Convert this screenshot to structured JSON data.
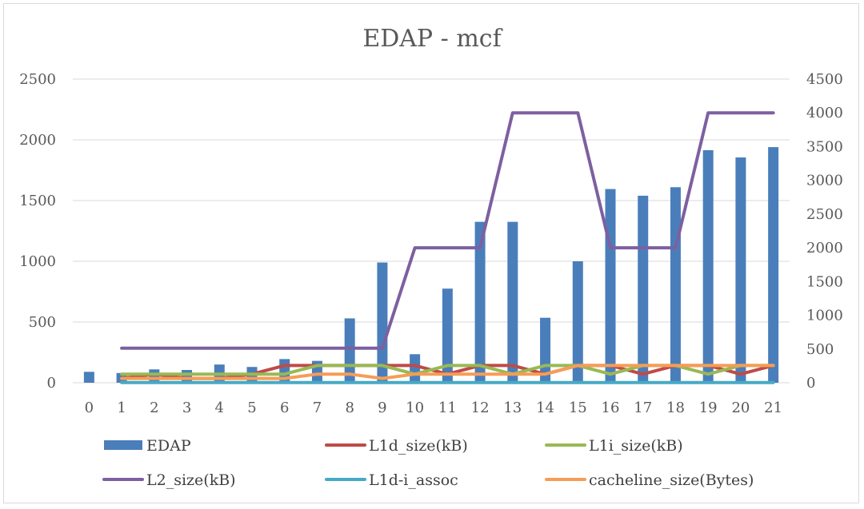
{
  "chart_data": {
    "type": "bar",
    "title": "EDAP - mcf",
    "categories": [
      "0",
      "1",
      "2",
      "3",
      "4",
      "5",
      "6",
      "7",
      "8",
      "9",
      "10",
      "11",
      "12",
      "13",
      "14",
      "15",
      "16",
      "17",
      "18",
      "19",
      "20",
      "21"
    ],
    "y_left": {
      "min": 0,
      "max": 2500,
      "ticks": [
        "0",
        "500",
        "1000",
        "1500",
        "2000",
        "2500"
      ]
    },
    "y_right": {
      "min": 0,
      "max": 4500,
      "ticks": [
        "0",
        "500",
        "1000",
        "1500",
        "2000",
        "2500",
        "3000",
        "3500",
        "4000",
        "4500"
      ]
    },
    "gridlines": true,
    "legend_position": "bottom",
    "series": [
      {
        "name": "EDAP",
        "type": "bar",
        "axis": "left",
        "color": "#4a7ebb",
        "values": [
          90,
          80,
          110,
          105,
          150,
          130,
          195,
          180,
          530,
          990,
          235,
          775,
          1325,
          1325,
          535,
          1000,
          1595,
          1540,
          1610,
          1915,
          1855,
          1940
        ]
      },
      {
        "name": "L1d_size(kB)",
        "type": "line",
        "axis": "right",
        "color": "#be4b48",
        "values": [
          null,
          64,
          128,
          64,
          64,
          128,
          256,
          256,
          256,
          256,
          256,
          128,
          256,
          256,
          128,
          256,
          256,
          128,
          256,
          256,
          128,
          256
        ]
      },
      {
        "name": "L1i_size(kB)",
        "type": "line",
        "axis": "right",
        "color": "#98b954",
        "values": [
          null,
          128,
          128,
          128,
          128,
          128,
          128,
          256,
          256,
          256,
          128,
          256,
          256,
          128,
          256,
          256,
          128,
          256,
          256,
          128,
          256,
          256
        ]
      },
      {
        "name": "L2_size(kB)",
        "type": "line",
        "axis": "right",
        "color": "#7d60a0",
        "values": [
          null,
          512,
          512,
          512,
          512,
          512,
          512,
          512,
          512,
          512,
          2000,
          2000,
          2000,
          4000,
          4000,
          4000,
          2000,
          2000,
          2000,
          4000,
          4000,
          4000
        ]
      },
      {
        "name": "L1d-i_assoc",
        "type": "line",
        "axis": "right",
        "color": "#46aac5",
        "values": [
          null,
          2,
          2,
          2,
          2,
          2,
          2,
          2,
          2,
          2,
          2,
          2,
          2,
          2,
          2,
          2,
          2,
          2,
          2,
          2,
          2,
          2
        ]
      },
      {
        "name": "cacheline_size(Bytes)",
        "type": "line",
        "axis": "right",
        "color": "#f59d56",
        "values": [
          null,
          64,
          64,
          64,
          64,
          64,
          64,
          128,
          128,
          64,
          128,
          128,
          128,
          128,
          128,
          256,
          256,
          256,
          256,
          256,
          256,
          256
        ]
      }
    ]
  }
}
